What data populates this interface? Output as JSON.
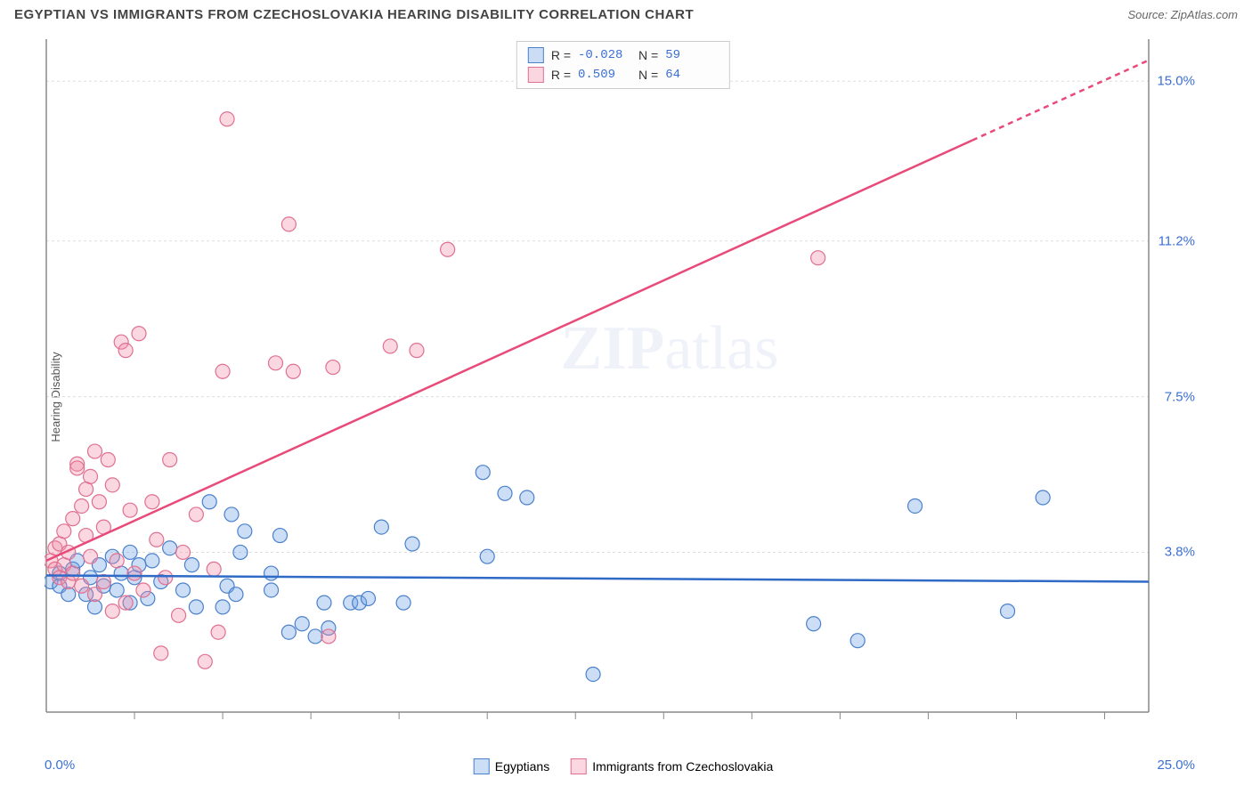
{
  "title": "EGYPTIAN VS IMMIGRANTS FROM CZECHOSLOVAKIA HEARING DISABILITY CORRELATION CHART",
  "source": "Source: ZipAtlas.com",
  "watermark": "ZIPatlas",
  "chart": {
    "type": "scatter",
    "ylabel": "Hearing Disability",
    "xlim": [
      0.0,
      25.0
    ],
    "ylim": [
      0.0,
      16.0
    ],
    "xticks_minor": [
      2.0,
      4.0,
      6.0,
      8.0,
      10.0,
      12.0,
      14.0,
      16.0,
      18.0,
      20.0,
      22.0,
      24.0
    ],
    "yticks": [
      3.8,
      7.5,
      11.2,
      15.0
    ],
    "ytick_labels": [
      "3.8%",
      "7.5%",
      "11.2%",
      "15.0%"
    ],
    "xmin_label": "0.0%",
    "xmax_label": "25.0%",
    "grid_color": "#dddddd",
    "axis_color": "#888888",
    "background_color": "#ffffff",
    "marker_radius": 8,
    "marker_stroke_width": 1.2,
    "line_width": 2.5,
    "series": [
      {
        "name": "Egyptians",
        "fill_color": "rgba(110,160,230,0.35)",
        "stroke_color": "#4a80cc",
        "line_color": "#2f6ac7",
        "r": "-0.028",
        "n": "59",
        "trend": {
          "y_intercept": 3.25,
          "y_at_xmax": 3.1,
          "dash_from_x": null
        },
        "points": [
          [
            0.1,
            3.1
          ],
          [
            0.3,
            3.0
          ],
          [
            0.3,
            3.3
          ],
          [
            0.5,
            2.8
          ],
          [
            0.6,
            3.4
          ],
          [
            0.7,
            3.6
          ],
          [
            0.9,
            2.8
          ],
          [
            1.0,
            3.2
          ],
          [
            1.1,
            2.5
          ],
          [
            1.2,
            3.5
          ],
          [
            1.3,
            3.0
          ],
          [
            1.5,
            3.7
          ],
          [
            1.6,
            2.9
          ],
          [
            1.7,
            3.3
          ],
          [
            1.9,
            3.8
          ],
          [
            1.9,
            2.6
          ],
          [
            2.0,
            3.2
          ],
          [
            2.1,
            3.5
          ],
          [
            2.3,
            2.7
          ],
          [
            2.4,
            3.6
          ],
          [
            2.6,
            3.1
          ],
          [
            2.8,
            3.9
          ],
          [
            3.1,
            2.9
          ],
          [
            3.3,
            3.5
          ],
          [
            3.4,
            2.5
          ],
          [
            3.7,
            5.0
          ],
          [
            4.0,
            2.5
          ],
          [
            4.1,
            3.0
          ],
          [
            4.2,
            4.7
          ],
          [
            4.3,
            2.8
          ],
          [
            4.4,
            3.8
          ],
          [
            4.5,
            4.3
          ],
          [
            5.1,
            3.3
          ],
          [
            5.1,
            2.9
          ],
          [
            5.3,
            4.2
          ],
          [
            5.5,
            1.9
          ],
          [
            5.8,
            2.1
          ],
          [
            6.1,
            1.8
          ],
          [
            6.3,
            2.6
          ],
          [
            6.4,
            2.0
          ],
          [
            6.9,
            2.6
          ],
          [
            7.1,
            2.6
          ],
          [
            7.3,
            2.7
          ],
          [
            7.6,
            4.4
          ],
          [
            8.1,
            2.6
          ],
          [
            8.3,
            4.0
          ],
          [
            9.9,
            5.7
          ],
          [
            10.0,
            3.7
          ],
          [
            10.4,
            5.2
          ],
          [
            10.9,
            5.1
          ],
          [
            12.4,
            0.9
          ],
          [
            17.4,
            2.1
          ],
          [
            18.4,
            1.7
          ],
          [
            19.7,
            4.9
          ],
          [
            21.8,
            2.4
          ],
          [
            22.6,
            5.1
          ]
        ]
      },
      {
        "name": "Immigrants from Czechoslovakia",
        "fill_color": "rgba(240,140,170,0.35)",
        "stroke_color": "#e07090",
        "line_color": "#e84a7a",
        "r": "0.509",
        "n": "64",
        "trend": {
          "y_intercept": 3.6,
          "y_at_xmax": 15.5,
          "dash_from_x": 21.0
        },
        "points": [
          [
            0.1,
            3.6
          ],
          [
            0.2,
            3.4
          ],
          [
            0.2,
            3.9
          ],
          [
            0.3,
            3.2
          ],
          [
            0.3,
            4.0
          ],
          [
            0.4,
            3.5
          ],
          [
            0.4,
            4.3
          ],
          [
            0.5,
            3.8
          ],
          [
            0.5,
            3.1
          ],
          [
            0.6,
            4.6
          ],
          [
            0.6,
            3.3
          ],
          [
            0.7,
            5.9
          ],
          [
            0.7,
            5.8
          ],
          [
            0.8,
            4.9
          ],
          [
            0.8,
            3.0
          ],
          [
            0.9,
            5.3
          ],
          [
            0.9,
            4.2
          ],
          [
            1.0,
            5.6
          ],
          [
            1.0,
            3.7
          ],
          [
            1.1,
            6.2
          ],
          [
            1.1,
            2.8
          ],
          [
            1.2,
            5.0
          ],
          [
            1.3,
            4.4
          ],
          [
            1.3,
            3.1
          ],
          [
            1.4,
            6.0
          ],
          [
            1.5,
            2.4
          ],
          [
            1.5,
            5.4
          ],
          [
            1.6,
            3.6
          ],
          [
            1.7,
            8.8
          ],
          [
            1.8,
            8.6
          ],
          [
            1.8,
            2.6
          ],
          [
            1.9,
            4.8
          ],
          [
            2.0,
            3.3
          ],
          [
            2.1,
            9.0
          ],
          [
            2.2,
            2.9
          ],
          [
            2.4,
            5.0
          ],
          [
            2.5,
            4.1
          ],
          [
            2.6,
            1.4
          ],
          [
            2.7,
            3.2
          ],
          [
            2.8,
            6.0
          ],
          [
            3.0,
            2.3
          ],
          [
            3.1,
            3.8
          ],
          [
            3.4,
            4.7
          ],
          [
            3.6,
            1.2
          ],
          [
            3.8,
            3.4
          ],
          [
            3.9,
            1.9
          ],
          [
            4.0,
            8.1
          ],
          [
            4.1,
            14.1
          ],
          [
            5.2,
            8.3
          ],
          [
            5.5,
            11.6
          ],
          [
            5.6,
            8.1
          ],
          [
            6.4,
            1.8
          ],
          [
            6.5,
            8.2
          ],
          [
            7.8,
            8.7
          ],
          [
            8.4,
            8.6
          ],
          [
            9.1,
            11.0
          ],
          [
            17.5,
            10.8
          ]
        ]
      }
    ]
  }
}
